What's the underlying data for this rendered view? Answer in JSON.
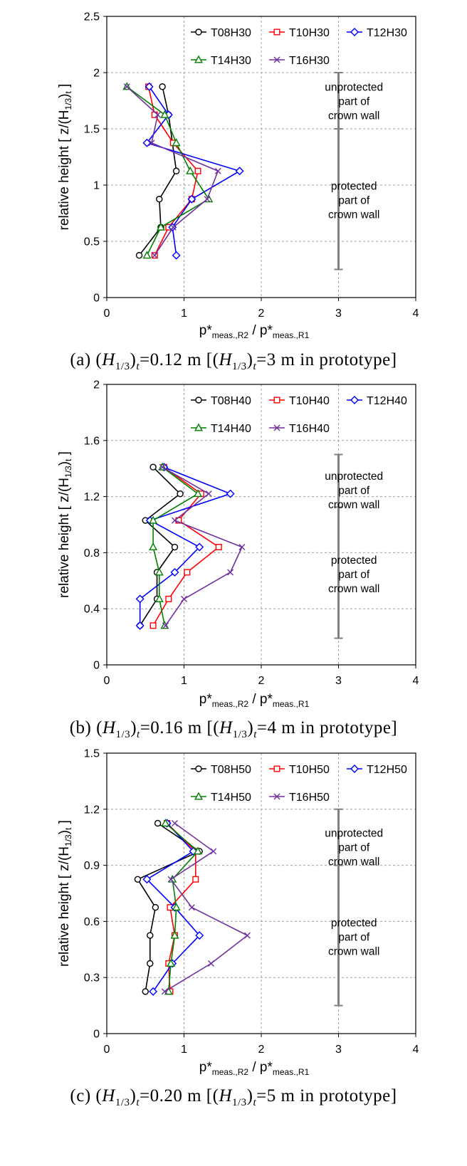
{
  "colors": {
    "T08": "#000000",
    "T10": "#ff0000",
    "T12": "#0000ff",
    "T14": "#008000",
    "T16": "#7030a0",
    "bracket": "#808080",
    "grid": "#a0a0a0"
  },
  "markers": {
    "T08": "circle",
    "T10": "square",
    "T12": "diamond",
    "T14": "triangle",
    "T16": "cross"
  },
  "common": {
    "ylabel_main": "relative height [ z/(H",
    "ylabel_sub": "1/3",
    "ylabel_tail": ")",
    "ylabel_t": "t",
    "ylabel_end": " ]",
    "xlabel_p": "p*",
    "xlabel_sub1": "meas.,R2",
    "xlabel_mid": " / p*",
    "xlabel_sub2": "meas.,R1",
    "annot_unprotected": [
      "unprotected",
      "part of",
      "crown wall"
    ],
    "annot_protected": [
      "protected",
      "part of",
      "crown wall"
    ]
  },
  "chart_data": [
    {
      "type": "line",
      "xlim": [
        0,
        4
      ],
      "ylim": [
        0,
        2.5
      ],
      "xticks": [
        "0",
        "1",
        "2",
        "3",
        "4"
      ],
      "yticks": [
        "0",
        "0.5",
        "1",
        "1.5",
        "2",
        "2.5"
      ],
      "ytick_values": [
        0,
        0.5,
        1,
        1.5,
        2,
        2.5
      ],
      "xtick_values": [
        0,
        1,
        2,
        3,
        4
      ],
      "grid": true,
      "legend_position": "top",
      "bracket": {
        "x": 3.0,
        "y_bottom": 0.25,
        "y_mid": 1.5,
        "y_top": 2.0
      },
      "annotation_centers": {
        "unprotected": 1.75,
        "protected": 0.87
      },
      "caption": {
        "pre": "(a) (",
        "H": "H",
        "sub": "1/3",
        "t": "t",
        "mid": "=0.12 m [(",
        "post": "=3 m in prototype]"
      },
      "series": [
        {
          "key": "T08",
          "name": "T08H30",
          "x": [
            0.72,
            0.8,
            0.9,
            0.68,
            0.7,
            0.42
          ],
          "y": [
            1.875,
            1.625,
            1.125,
            0.875,
            0.625,
            0.375
          ]
        },
        {
          "key": "T10",
          "name": "T10H30",
          "x": [
            0.54,
            0.62,
            0.86,
            1.18,
            1.1,
            0.8,
            0.62
          ],
          "y": [
            1.875,
            1.625,
            1.375,
            1.125,
            0.875,
            0.625,
            0.375
          ]
        },
        {
          "key": "T12",
          "name": "T12H30",
          "x": [
            0.55,
            0.8,
            0.52,
            1.72,
            1.1,
            0.85,
            0.9
          ],
          "y": [
            1.875,
            1.625,
            1.375,
            1.125,
            0.875,
            0.625,
            0.375
          ]
        },
        {
          "key": "T14",
          "name": "T14H30",
          "x": [
            0.26,
            0.75,
            0.9,
            1.08,
            1.32,
            0.7,
            0.52
          ],
          "y": [
            1.875,
            1.625,
            1.375,
            1.125,
            0.875,
            0.625,
            0.375
          ]
        },
        {
          "key": "T16",
          "name": "T16H30",
          "x": [
            0.26,
            0.66,
            0.58,
            1.44,
            1.3,
            0.86,
            0.62
          ],
          "y": [
            1.875,
            1.625,
            1.375,
            1.125,
            0.875,
            0.625,
            0.375
          ]
        }
      ]
    },
    {
      "type": "line",
      "xlim": [
        0,
        4
      ],
      "ylim": [
        0,
        2
      ],
      "xticks": [
        "0",
        "1",
        "2",
        "3",
        "4"
      ],
      "yticks": [
        "0",
        "0.4",
        "0.8",
        "1.2",
        "1.6",
        "2"
      ],
      "ytick_values": [
        0,
        0.4,
        0.8,
        1.2,
        1.6,
        2.0
      ],
      "xtick_values": [
        0,
        1,
        2,
        3,
        4
      ],
      "grid": true,
      "legend_position": "top",
      "bracket": {
        "x": 3.0,
        "y_bottom": 0.19,
        "y_mid": 1.125,
        "y_top": 1.5
      },
      "annotation_centers": {
        "unprotected": 1.25,
        "protected": 0.65
      },
      "caption": {
        "pre": "(b) (",
        "H": "H",
        "sub": "1/3",
        "t": "t",
        "mid": "=0.16 m [(",
        "post": "=4 m in prototype]"
      },
      "series": [
        {
          "key": "T08",
          "name": "T08H40",
          "x": [
            0.6,
            0.95,
            0.5,
            0.88,
            0.65,
            0.65,
            0.43
          ],
          "y": [
            1.41,
            1.22,
            1.03,
            0.84,
            0.66,
            0.47,
            0.28
          ]
        },
        {
          "key": "T10",
          "name": "T10H40",
          "x": [
            0.74,
            1.22,
            0.93,
            1.45,
            1.04,
            0.8,
            0.6
          ],
          "y": [
            1.41,
            1.22,
            1.03,
            0.84,
            0.66,
            0.47,
            0.28
          ]
        },
        {
          "key": "T12",
          "name": "T12H40",
          "x": [
            0.74,
            1.6,
            0.56,
            1.2,
            0.88,
            0.43,
            0.43
          ],
          "y": [
            1.41,
            1.22,
            1.03,
            0.84,
            0.66,
            0.47,
            0.28
          ]
        },
        {
          "key": "T14",
          "name": "T14H40",
          "x": [
            0.72,
            1.18,
            0.6,
            0.6,
            0.68,
            0.68,
            0.75
          ],
          "y": [
            1.41,
            1.22,
            1.03,
            0.84,
            0.66,
            0.47,
            0.28
          ]
        },
        {
          "key": "T16",
          "name": "T16H40",
          "x": [
            0.72,
            1.32,
            0.88,
            1.75,
            1.6,
            1.0,
            0.76
          ],
          "y": [
            1.41,
            1.22,
            1.03,
            0.84,
            0.66,
            0.47,
            0.28
          ]
        }
      ]
    },
    {
      "type": "line",
      "xlim": [
        0,
        4
      ],
      "ylim": [
        0,
        1.5
      ],
      "xticks": [
        "0",
        "1",
        "2",
        "3",
        "4"
      ],
      "yticks": [
        "0",
        "0.3",
        "0.6",
        "0.9",
        "1.2",
        "1.5"
      ],
      "ytick_values": [
        0,
        0.3,
        0.6,
        0.9,
        1.2,
        1.5
      ],
      "xtick_values": [
        0,
        1,
        2,
        3,
        4
      ],
      "grid": true,
      "legend_position": "top",
      "bracket": {
        "x": 3.0,
        "y_bottom": 0.15,
        "y_mid": 0.9,
        "y_top": 1.2
      },
      "annotation_centers": {
        "unprotected": 1.0,
        "protected": 0.52
      },
      "caption": {
        "pre": "(c) (",
        "H": "H",
        "sub": "1/3",
        "t": "t",
        "mid": "=0.20 m [(",
        "post": "=5 m in prototype]"
      },
      "series": [
        {
          "key": "T08",
          "name": "T08H50",
          "x": [
            0.66,
            1.2,
            0.4,
            0.63,
            0.56,
            0.56,
            0.5
          ],
          "y": [
            1.125,
            0.975,
            0.825,
            0.675,
            0.525,
            0.375,
            0.225
          ]
        },
        {
          "key": "T10",
          "name": "T10H50",
          "x": [
            0.78,
            1.15,
            1.15,
            0.82,
            0.88,
            0.8,
            0.82
          ],
          "y": [
            1.125,
            0.975,
            0.825,
            0.675,
            0.525,
            0.375,
            0.225
          ]
        },
        {
          "key": "T12",
          "name": "T12H50",
          "x": [
            0.78,
            1.12,
            0.52,
            0.88,
            1.2,
            0.85,
            0.6
          ],
          "y": [
            1.125,
            0.975,
            0.825,
            0.675,
            0.525,
            0.375,
            0.225
          ]
        },
        {
          "key": "T14",
          "name": "T14H50",
          "x": [
            0.76,
            1.18,
            0.85,
            0.9,
            0.88,
            0.83,
            0.8
          ],
          "y": [
            1.125,
            0.975,
            0.825,
            0.675,
            0.525,
            0.375,
            0.225
          ]
        },
        {
          "key": "T16",
          "name": "T16H50",
          "x": [
            0.88,
            1.38,
            0.83,
            1.1,
            1.82,
            1.35,
            0.75
          ],
          "y": [
            1.125,
            0.975,
            0.825,
            0.675,
            0.525,
            0.375,
            0.225
          ]
        }
      ]
    }
  ]
}
